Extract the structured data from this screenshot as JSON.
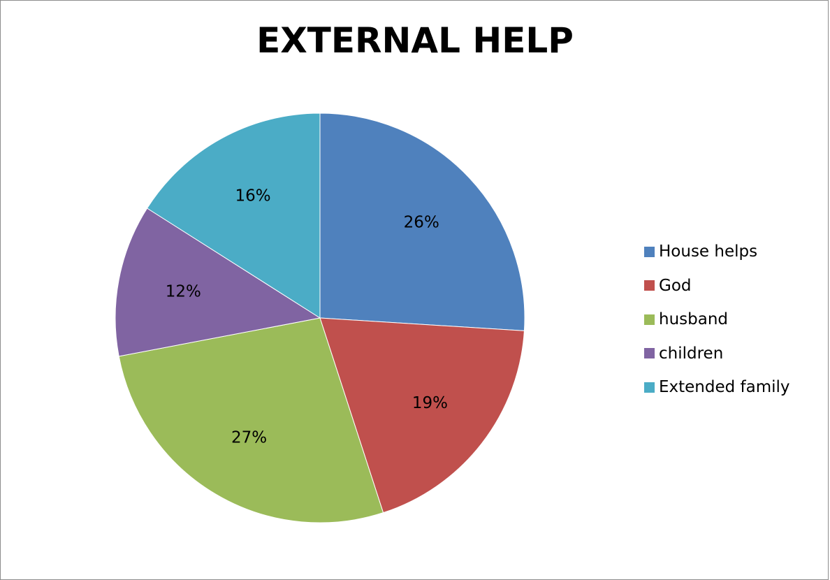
{
  "chart_data": {
    "type": "pie",
    "title": "EXTERNAL HELP",
    "categories": [
      "House helps",
      "God",
      "husband",
      "children",
      "Extended family"
    ],
    "values": [
      26,
      19,
      27,
      12,
      16
    ],
    "labels": [
      "26%",
      "19%",
      "27%",
      "12%",
      "16%"
    ],
    "colors": [
      "#4f81bd",
      "#c0504d",
      "#9bbb59",
      "#8064a2",
      "#4bacc6"
    ],
    "legend_position": "right",
    "start_angle": "12 o'clock",
    "direction": "clockwise"
  }
}
